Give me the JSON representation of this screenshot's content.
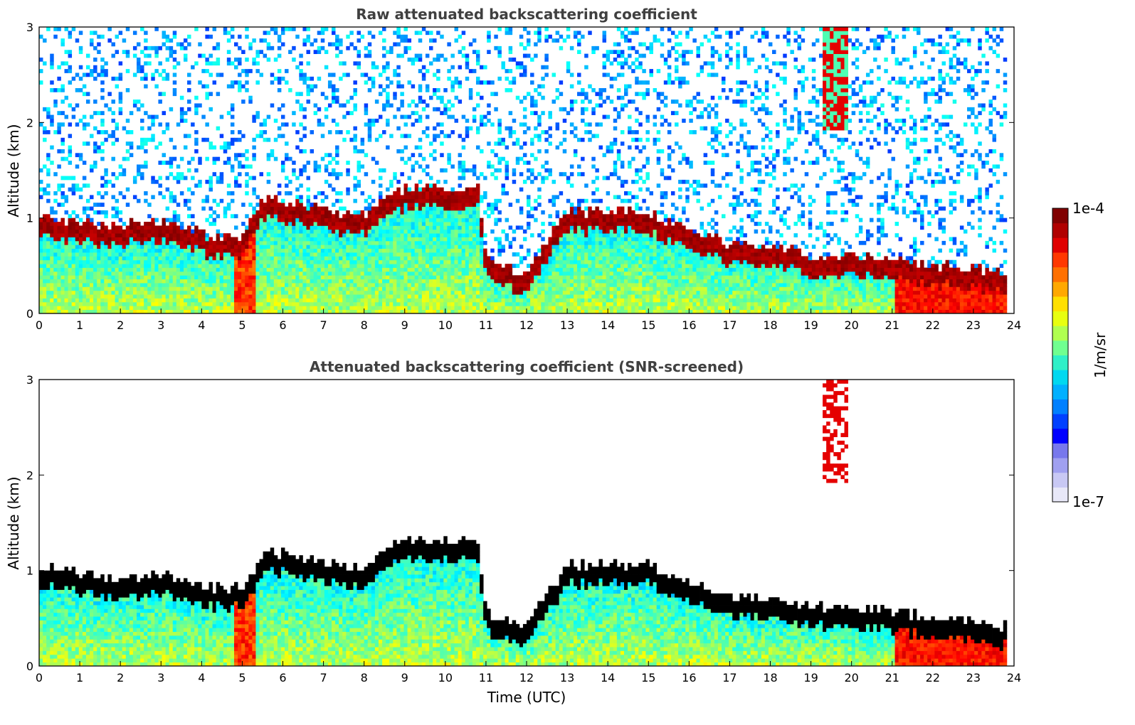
{
  "chart_data": [
    {
      "type": "heatmap",
      "title": "Raw attenuated backscattering coefficient",
      "xlabel": "",
      "ylabel": "Altitude (km)",
      "xlim": [
        0,
        24
      ],
      "ylim": [
        0,
        3
      ],
      "x_ticks": [
        "0",
        "1",
        "2",
        "3",
        "4",
        "5",
        "6",
        "7",
        "8",
        "9",
        "10",
        "11",
        "12",
        "13",
        "14",
        "15",
        "16",
        "17",
        "18",
        "19",
        "20",
        "21",
        "22",
        "23",
        "24"
      ],
      "y_ticks": [
        "0",
        "1",
        "2",
        "3"
      ],
      "cloud_base_km": [
        [
          0,
          0.9
        ],
        [
          1,
          0.85
        ],
        [
          2,
          0.8
        ],
        [
          3,
          0.85
        ],
        [
          3.5,
          0.8
        ],
        [
          4,
          0.7
        ],
        [
          5,
          0.7
        ],
        [
          5.6,
          1.1
        ],
        [
          6,
          1.05
        ],
        [
          7,
          0.95
        ],
        [
          8,
          0.9
        ],
        [
          8.3,
          1.05
        ],
        [
          9,
          1.2
        ],
        [
          10,
          1.2
        ],
        [
          10.8,
          1.2
        ],
        [
          11,
          0.45
        ],
        [
          12,
          0.3
        ],
        [
          13,
          0.95
        ],
        [
          14,
          0.95
        ],
        [
          15,
          0.95
        ],
        [
          16,
          0.75
        ],
        [
          17,
          0.6
        ],
        [
          18,
          0.6
        ],
        [
          19,
          0.5
        ],
        [
          20,
          0.5
        ],
        [
          21,
          0.45
        ],
        [
          22,
          0.4
        ],
        [
          23,
          0.35
        ],
        [
          23.8,
          0.3
        ]
      ],
      "colorscale": "jet",
      "masking": "none"
    },
    {
      "type": "heatmap",
      "title": "Attenuated backscattering coefficient (SNR-screened)",
      "xlabel": "Time (UTC)",
      "ylabel": "Altitude (km)",
      "xlim": [
        0,
        24
      ],
      "ylim": [
        0,
        3
      ],
      "x_ticks": [
        "0",
        "1",
        "2",
        "3",
        "4",
        "5",
        "6",
        "7",
        "8",
        "9",
        "10",
        "11",
        "12",
        "13",
        "14",
        "15",
        "16",
        "17",
        "18",
        "19",
        "20",
        "21",
        "22",
        "23",
        "24"
      ],
      "y_ticks": [
        "0",
        "1",
        "2",
        "3"
      ],
      "colorscale": "jet",
      "masking": "low-SNR pixels removed"
    }
  ],
  "colorbar": {
    "max_label": "1e-4",
    "min_label": "1e-7",
    "unit_label": "1/m/sr",
    "scale": "log",
    "colors": [
      "#e8e8f8",
      "#c8c8f4",
      "#a0a0f0",
      "#7878ec",
      "#0000ff",
      "#0040ff",
      "#0080ff",
      "#00b0ff",
      "#00d8f0",
      "#30f0c8",
      "#70ff90",
      "#b0ff50",
      "#e8ff10",
      "#ffe000",
      "#ffa800",
      "#ff7000",
      "#ff3800",
      "#e00000",
      "#b00000",
      "#800000"
    ]
  }
}
